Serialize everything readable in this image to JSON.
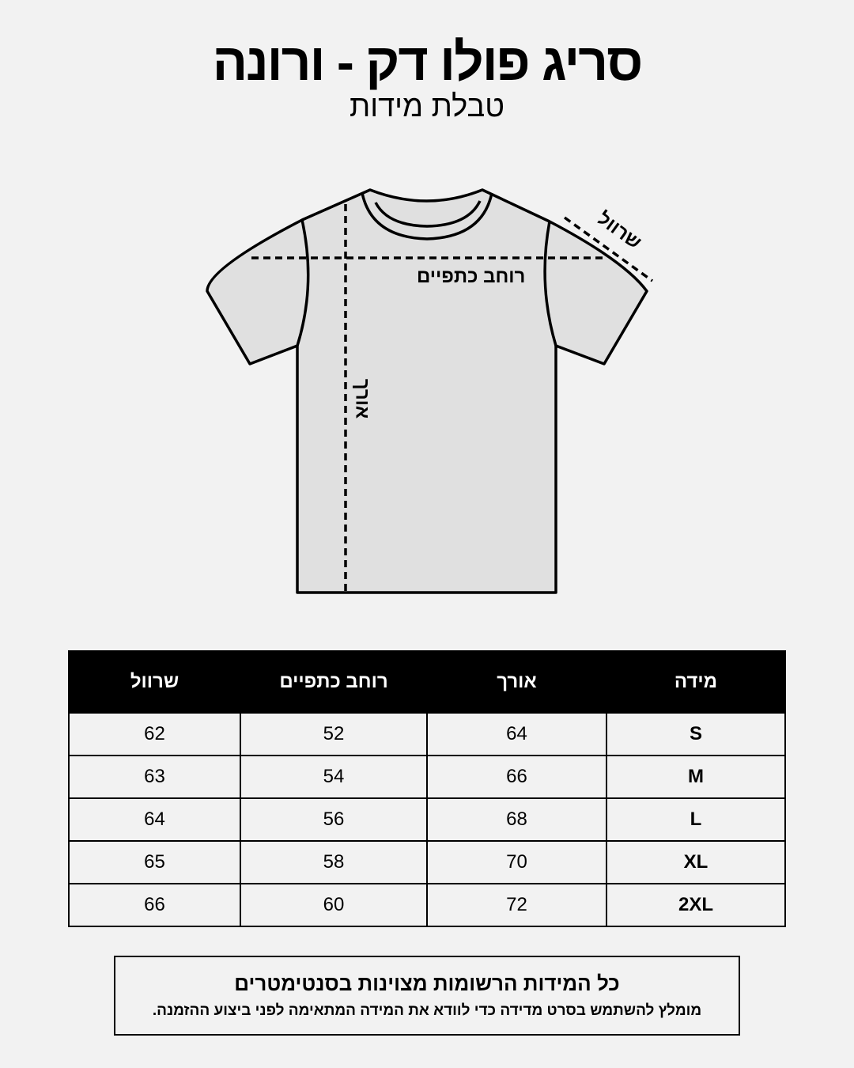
{
  "header": {
    "title": "סריג פולו דק - ורונה",
    "subtitle": "טבלת מידות"
  },
  "diagram": {
    "shoulder_label": "רוחב כתפיים",
    "length_label": "אורך",
    "sleeve_label": "שרוול",
    "shirt_fill": "#e0e0e0"
  },
  "table": {
    "headers": [
      "מידה",
      "אורך",
      "רוחב כתפיים",
      "שרוול"
    ],
    "rows": [
      [
        "S",
        "64",
        "52",
        "62"
      ],
      [
        "M",
        "66",
        "54",
        "63"
      ],
      [
        "L",
        "68",
        "56",
        "64"
      ],
      [
        "XL",
        "70",
        "58",
        "65"
      ],
      [
        "2XL",
        "72",
        "60",
        "66"
      ]
    ]
  },
  "note": {
    "line1": "כל המידות הרשומות מצוינות בסנטימטרים",
    "line2": "מומלץ להשתמש בסרט מדידה כדי לוודא את המידה המתאימה לפני ביצוע ההזמנה."
  }
}
